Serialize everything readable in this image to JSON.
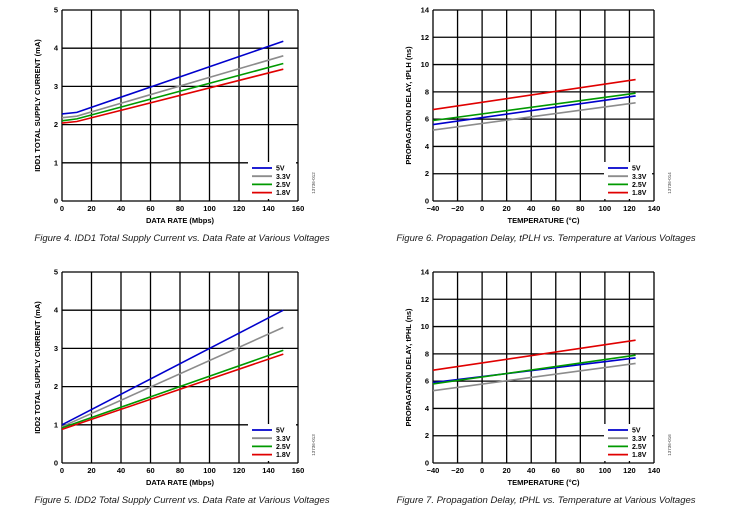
{
  "colors": {
    "5V": "#0000cc",
    "3.3V": "#8c8c8c",
    "2.5V": "#009900",
    "1.8V": "#e00000"
  },
  "chart_data": [
    {
      "type": "line",
      "caption": "Figure 4. IDD1 Total Supply Current vs. Data Rate at Various Voltages",
      "ylabel": "IDD1 TOTAL SUPPLY CURRENT (mA)",
      "xlabel": "DATA RATE (Mbps)",
      "figure_code": "13736-012",
      "xlim": [
        0,
        160
      ],
      "ylim": [
        0,
        5
      ],
      "xticks": [
        0,
        20,
        40,
        60,
        80,
        100,
        120,
        140,
        160
      ],
      "yticks": [
        0,
        1,
        2,
        3,
        4,
        5
      ],
      "grid": true,
      "legend_position": "bottom-right",
      "series": [
        {
          "name": "5V",
          "x": [
            0,
            10,
            150
          ],
          "y": [
            2.28,
            2.32,
            4.18
          ]
        },
        {
          "name": "3.3V",
          "x": [
            0,
            10,
            150
          ],
          "y": [
            2.18,
            2.22,
            3.8
          ]
        },
        {
          "name": "2.5V",
          "x": [
            0,
            10,
            150
          ],
          "y": [
            2.1,
            2.15,
            3.6
          ]
        },
        {
          "name": "1.8V",
          "x": [
            0,
            10,
            150
          ],
          "y": [
            2.04,
            2.08,
            3.45
          ]
        }
      ]
    },
    {
      "type": "line",
      "caption": "Figure 6. Propagation Delay, tPLH vs. Temperature at Various Voltages",
      "ylabel": "PROPAGATION DELAY, tPLH (ns)",
      "xlabel": "TEMPERATURE (°C)",
      "figure_code": "13736-014",
      "xlim": [
        -40,
        140
      ],
      "ylim": [
        0,
        14
      ],
      "xticks": [
        -40,
        -20,
        0,
        20,
        40,
        60,
        80,
        100,
        120,
        140
      ],
      "yticks": [
        0,
        2,
        4,
        6,
        8,
        10,
        12,
        14
      ],
      "grid": true,
      "legend_position": "bottom-right",
      "series": [
        {
          "name": "5V",
          "x": [
            -40,
            125
          ],
          "y": [
            5.6,
            7.7
          ]
        },
        {
          "name": "3.3V",
          "x": [
            -40,
            125
          ],
          "y": [
            5.2,
            7.2
          ]
        },
        {
          "name": "2.5V",
          "x": [
            -40,
            125
          ],
          "y": [
            5.9,
            7.9
          ]
        },
        {
          "name": "1.8V",
          "x": [
            -40,
            125
          ],
          "y": [
            6.7,
            8.9
          ]
        }
      ]
    },
    {
      "type": "line",
      "caption": "Figure 5. IDD2 Total Supply Current vs. Data Rate at Various Voltages",
      "ylabel": "IDD2 TOTAL SUPPLY CURRENT (mA)",
      "xlabel": "DATA RATE (Mbps)",
      "figure_code": "13736-013",
      "xlim": [
        0,
        160
      ],
      "ylim": [
        0,
        5
      ],
      "xticks": [
        0,
        20,
        40,
        60,
        80,
        100,
        120,
        140,
        160
      ],
      "yticks": [
        0,
        1,
        2,
        3,
        4,
        5
      ],
      "grid": true,
      "legend_position": "bottom-right",
      "series": [
        {
          "name": "5V",
          "x": [
            0,
            150
          ],
          "y": [
            1.0,
            4.0
          ]
        },
        {
          "name": "3.3V",
          "x": [
            0,
            150
          ],
          "y": [
            0.95,
            3.55
          ]
        },
        {
          "name": "2.5V",
          "x": [
            0,
            150
          ],
          "y": [
            0.92,
            2.95
          ]
        },
        {
          "name": "1.8V",
          "x": [
            0,
            150
          ],
          "y": [
            0.88,
            2.85
          ]
        }
      ]
    },
    {
      "type": "line",
      "caption": "Figure 7. Propagation Delay, tPHL vs. Temperature at Various Voltages",
      "ylabel": "PROPAGATION DELAY, tPHL (ns)",
      "xlabel": "TEMPERATURE (°C)",
      "figure_code": "13736-016",
      "xlim": [
        -40,
        140
      ],
      "ylim": [
        0,
        14
      ],
      "xticks": [
        -40,
        -20,
        0,
        20,
        40,
        60,
        80,
        100,
        120,
        140
      ],
      "yticks": [
        0,
        2,
        4,
        6,
        8,
        10,
        12,
        14
      ],
      "grid": true,
      "legend_position": "bottom-right",
      "series": [
        {
          "name": "5V",
          "x": [
            -40,
            125
          ],
          "y": [
            5.9,
            7.7
          ]
        },
        {
          "name": "3.3V",
          "x": [
            -40,
            125
          ],
          "y": [
            5.3,
            7.3
          ]
        },
        {
          "name": "2.5V",
          "x": [
            -40,
            125
          ],
          "y": [
            5.8,
            7.9
          ]
        },
        {
          "name": "1.8V",
          "x": [
            -40,
            125
          ],
          "y": [
            6.8,
            9.0
          ]
        }
      ]
    }
  ]
}
